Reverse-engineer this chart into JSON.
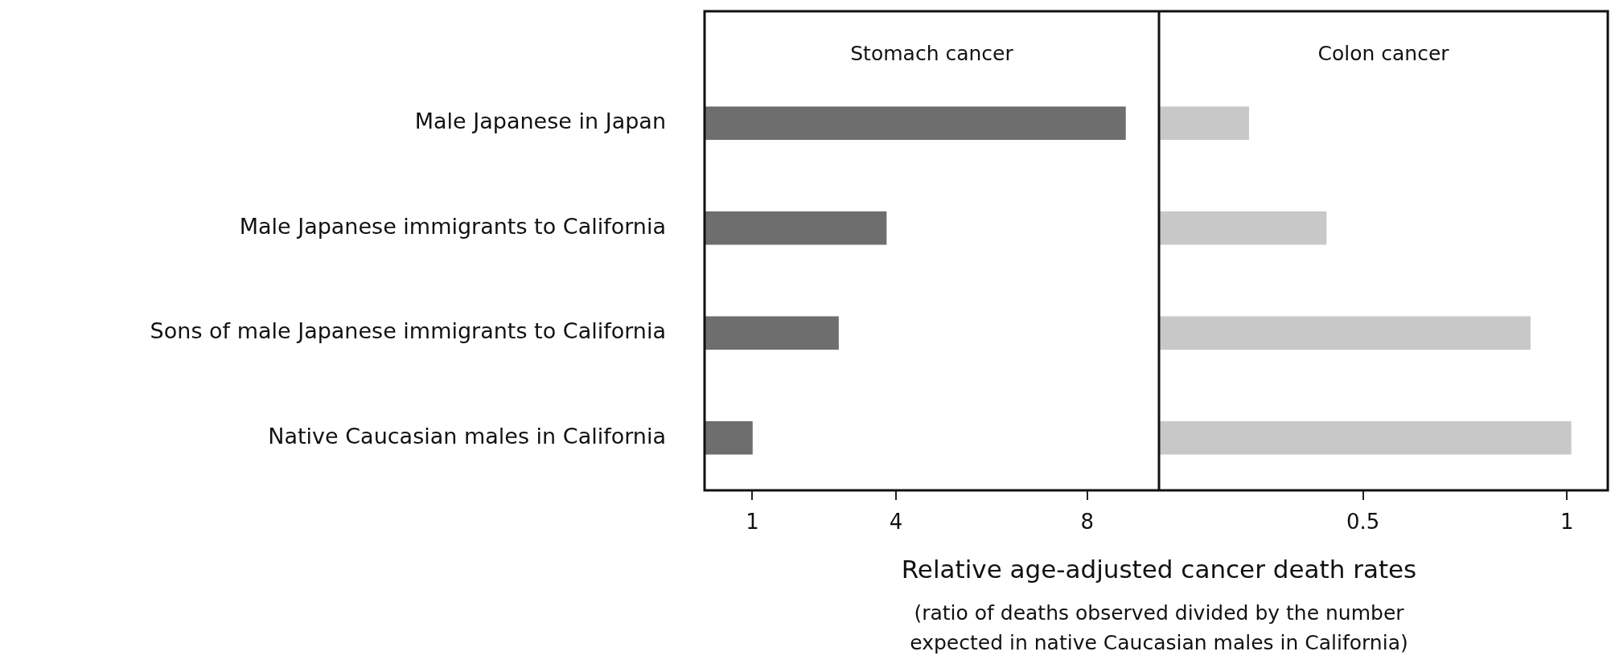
{
  "chart_data": [
    {
      "type": "bar",
      "orientation": "horizontal",
      "title": "Stomach cancer",
      "xlabel": "Relative age-adjusted cancer death rates",
      "annotations": [
        "(ratio of deaths observed divided by the number expected in native Caucasian males in California)"
      ],
      "categories": [
        "Male Japanese in Japan",
        "Male Japanese immigrants to California",
        "Sons of male Japanese immigrants to California",
        "Native Caucasian males in California"
      ],
      "values": [
        8.8,
        3.8,
        2.8,
        1.0
      ],
      "color": "#6e6e6e",
      "xlim": [
        0,
        9.5
      ],
      "xticks": [
        1,
        4,
        8
      ],
      "grid": false,
      "legend": false
    },
    {
      "type": "bar",
      "orientation": "horizontal",
      "title": "Colon cancer",
      "categories": [
        null,
        null,
        null,
        null
      ],
      "values": [
        0.22,
        0.41,
        0.91,
        1.01
      ],
      "color": "#c8c8c8",
      "xlim": [
        0,
        1.1
      ],
      "xticks": [
        0.5,
        1
      ],
      "grid": false,
      "legend": false,
      "tick_labels": "x"
    }
  ]
}
